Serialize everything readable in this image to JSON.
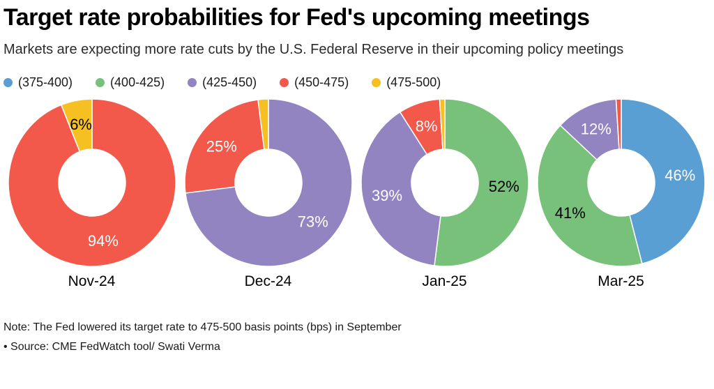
{
  "header": {
    "title": "Target rate probabilities for Fed's upcoming meetings",
    "subtitle": "Markets are expecting more rate cuts by the U.S. Federal Reserve in their upcoming policy meetings"
  },
  "colors": {
    "(375-400)": "#5A9FD4",
    "(400-425)": "#77C17A",
    "(425-450)": "#9184C1",
    "(450-475)": "#F2594B",
    "(475-500)": "#F6C022"
  },
  "legend": [
    {
      "label": "(375-400)"
    },
    {
      "label": "(400-425)"
    },
    {
      "label": "(425-450)"
    },
    {
      "label": "(450-475)"
    },
    {
      "label": "(475-500)"
    }
  ],
  "chart_data": {
    "type": "pie",
    "variant": "donut-multiples",
    "title": "Target rate probabilities for Fed's upcoming meetings",
    "unit": "percent probability",
    "series_key": "target rate range in basis points",
    "categories": [
      "Nov-24",
      "Dec-24",
      "Jan-25",
      "Mar-25"
    ],
    "start_angle": "12 o'clock, clockwise",
    "donuts": [
      {
        "category": "Nov-24",
        "slices": [
          {
            "range": "(450-475)",
            "value": 94,
            "label": "94%",
            "label_color": "#ffffff"
          },
          {
            "range": "(475-500)",
            "value": 6,
            "label": "6%",
            "label_color": "#000000"
          }
        ]
      },
      {
        "category": "Dec-24",
        "slices": [
          {
            "range": "(425-450)",
            "value": 73,
            "label": "73%",
            "label_color": "#ffffff"
          },
          {
            "range": "(450-475)",
            "value": 25,
            "label": "25%",
            "label_color": "#ffffff"
          },
          {
            "range": "(475-500)",
            "value": 2,
            "label": "",
            "label_color": ""
          }
        ]
      },
      {
        "category": "Jan-25",
        "slices": [
          {
            "range": "(400-425)",
            "value": 52,
            "label": "52%",
            "label_color": "#000000"
          },
          {
            "range": "(425-450)",
            "value": 39,
            "label": "39%",
            "label_color": "#ffffff"
          },
          {
            "range": "(450-475)",
            "value": 8,
            "label": "8%",
            "label_color": "#ffffff"
          },
          {
            "range": "(475-500)",
            "value": 1,
            "label": "",
            "label_color": ""
          }
        ]
      },
      {
        "category": "Mar-25",
        "slices": [
          {
            "range": "(375-400)",
            "value": 46,
            "label": "46%",
            "label_color": "#ffffff"
          },
          {
            "range": "(400-425)",
            "value": 41,
            "label": "41%",
            "label_color": "#000000"
          },
          {
            "range": "(425-450)",
            "value": 12,
            "label": "12%",
            "label_color": "#ffffff"
          },
          {
            "range": "(450-475)",
            "value": 1,
            "label": "",
            "label_color": ""
          }
        ]
      }
    ]
  },
  "footer": {
    "note": "Note: The Fed lowered its target rate to 475-500 basis points (bps) in September",
    "source": "• Source: CME FedWatch tool/ Swati Verma"
  }
}
